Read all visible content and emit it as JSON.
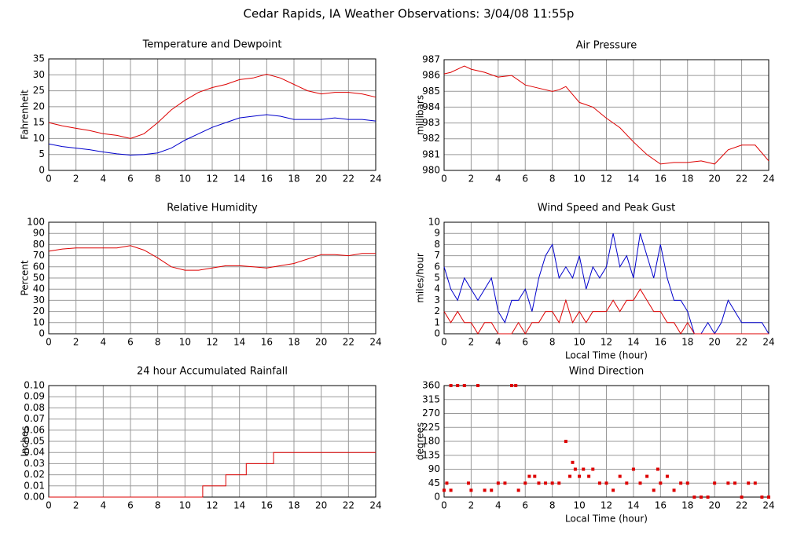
{
  "title": "Cedar Rapids, IA Weather Observations: 3/04/08 11:55p",
  "chart_data": [
    {
      "type": "line",
      "title": "Temperature and Dewpoint",
      "ylabel": "Fahrenheit",
      "x": [
        0,
        1,
        2,
        3,
        4,
        5,
        6,
        7,
        8,
        9,
        10,
        11,
        12,
        13,
        14,
        15,
        16,
        17,
        18,
        19,
        20,
        21,
        22,
        23,
        24
      ],
      "series": [
        {
          "color": "#dd0000",
          "values": [
            15,
            14,
            13.2,
            12.5,
            11.5,
            11,
            10,
            11.5,
            15,
            19,
            22,
            24.5,
            26,
            27,
            28.5,
            29,
            30.2,
            29,
            27,
            25,
            24,
            24.5,
            24.5,
            24,
            23
          ]
        },
        {
          "color": "#0000cc",
          "values": [
            8.3,
            7.5,
            7,
            6.5,
            5.8,
            5.2,
            4.8,
            5,
            5.5,
            7,
            9.5,
            11.5,
            13.5,
            15,
            16.5,
            17,
            17.5,
            17,
            16,
            16,
            16,
            16.5,
            16,
            16,
            15.5
          ]
        }
      ],
      "xlim": [
        0,
        24
      ],
      "xticks": [
        0,
        2,
        4,
        6,
        8,
        10,
        12,
        14,
        16,
        18,
        20,
        22,
        24
      ],
      "ylim": [
        0,
        35
      ],
      "yticks": [
        0,
        5,
        10,
        15,
        20,
        25,
        30,
        35
      ],
      "grid": true
    },
    {
      "type": "line",
      "title": "Air Pressure",
      "ylabel": "millibars",
      "x": [
        0,
        0.5,
        1,
        1.5,
        2,
        3,
        4,
        5,
        6,
        7,
        8,
        8.5,
        9,
        10,
        11,
        12,
        13,
        14,
        15,
        16,
        17,
        18,
        19,
        20,
        21,
        22,
        23,
        24
      ],
      "series": [
        {
          "color": "#dd0000",
          "values": [
            986.1,
            986.2,
            986.4,
            986.6,
            986.4,
            986.2,
            985.9,
            986,
            985.4,
            985.2,
            985,
            985.1,
            985.3,
            984.3,
            984,
            983.3,
            982.7,
            981.8,
            981,
            980.4,
            980.5,
            980.5,
            980.6,
            980.4,
            981.3,
            981.6,
            981.6,
            980.6
          ]
        }
      ],
      "xlim": [
        0,
        24
      ],
      "xticks": [
        0,
        2,
        4,
        6,
        8,
        10,
        12,
        14,
        16,
        18,
        20,
        22,
        24
      ],
      "ylim": [
        980,
        987
      ],
      "yticks": [
        980,
        981,
        982,
        983,
        984,
        985,
        986,
        987
      ],
      "grid": true
    },
    {
      "type": "line",
      "title": "Relative Humidity",
      "ylabel": "Percent",
      "x": [
        0,
        1,
        2,
        3,
        4,
        5,
        6,
        7,
        8,
        9,
        10,
        11,
        12,
        13,
        14,
        15,
        16,
        17,
        18,
        19,
        20,
        21,
        22,
        23,
        24
      ],
      "series": [
        {
          "color": "#dd0000",
          "values": [
            74,
            76,
            77,
            77,
            77,
            77,
            79,
            75,
            68,
            60,
            57,
            57,
            59,
            61,
            61,
            60,
            59,
            61,
            63,
            67,
            71,
            71,
            70,
            72,
            72
          ]
        }
      ],
      "xlim": [
        0,
        24
      ],
      "xticks": [
        0,
        2,
        4,
        6,
        8,
        10,
        12,
        14,
        16,
        18,
        20,
        22,
        24
      ],
      "ylim": [
        0,
        100
      ],
      "yticks": [
        0,
        10,
        20,
        30,
        40,
        50,
        60,
        70,
        80,
        90,
        100
      ],
      "grid": true
    },
    {
      "type": "line",
      "title": "Wind Speed and Peak Gust",
      "ylabel": "miles/hour",
      "xlabel": "Local Time (hour)",
      "x": [
        0,
        0.5,
        1,
        1.5,
        2,
        2.5,
        3,
        3.5,
        4,
        4.5,
        5,
        5.5,
        6,
        6.5,
        7,
        7.5,
        8,
        8.5,
        9,
        9.5,
        10,
        10.5,
        11,
        11.5,
        12,
        12.5,
        13,
        13.5,
        14,
        14.5,
        15,
        15.5,
        16,
        16.5,
        17,
        17.5,
        18,
        18.5,
        19,
        19.5,
        20,
        20.5,
        21,
        21.5,
        22,
        22.5,
        23,
        23.5,
        24
      ],
      "series": [
        {
          "color": "#0000cc",
          "values": [
            6,
            4,
            3,
            5,
            4,
            3,
            4,
            5,
            2,
            1,
            3,
            3,
            4,
            2,
            5,
            7,
            8,
            5,
            6,
            5,
            7,
            4,
            6,
            5,
            6,
            9,
            6,
            7,
            5,
            9,
            7,
            5,
            8,
            5,
            3,
            3,
            2,
            0,
            0,
            1,
            0,
            1,
            3,
            2,
            1,
            1,
            1,
            1,
            0
          ]
        },
        {
          "color": "#dd0000",
          "values": [
            2,
            1,
            2,
            1,
            1,
            0,
            1,
            1,
            0,
            0,
            0,
            1,
            0,
            1,
            1,
            2,
            2,
            1,
            3,
            1,
            2,
            1,
            2,
            2,
            2,
            3,
            2,
            3,
            3,
            4,
            3,
            2,
            2,
            1,
            1,
            0,
            1,
            0,
            0,
            0,
            0,
            0,
            0,
            0,
            0,
            0,
            0,
            0,
            0
          ]
        }
      ],
      "xlim": [
        0,
        24
      ],
      "xticks": [
        0,
        2,
        4,
        6,
        8,
        10,
        12,
        14,
        16,
        18,
        20,
        22,
        24
      ],
      "ylim": [
        0,
        10
      ],
      "yticks": [
        0,
        1,
        2,
        3,
        4,
        5,
        6,
        7,
        8,
        9,
        10
      ],
      "grid": true
    },
    {
      "type": "line",
      "title": "24 hour Accumulated Rainfall",
      "ylabel": "Inches",
      "x": [
        0,
        11.3,
        11.3,
        13,
        13,
        14.5,
        14.5,
        16.5,
        16.5,
        24
      ],
      "series": [
        {
          "color": "#dd0000",
          "values": [
            0,
            0,
            0.01,
            0.01,
            0.02,
            0.02,
            0.03,
            0.03,
            0.04,
            0.04
          ]
        }
      ],
      "xlim": [
        0,
        24
      ],
      "xticks": [
        0,
        2,
        4,
        6,
        8,
        10,
        12,
        14,
        16,
        18,
        20,
        22,
        24
      ],
      "ylim": [
        0,
        0.1
      ],
      "yticks": [
        {
          "value": 0,
          "label": "0.00"
        },
        {
          "value": 0.01,
          "label": "0.01"
        },
        {
          "value": 0.02,
          "label": "0.02"
        },
        {
          "value": 0.03,
          "label": "0.03"
        },
        {
          "value": 0.04,
          "label": "0.04"
        },
        {
          "value": 0.05,
          "label": "0.05"
        },
        {
          "value": 0.06,
          "label": "0.06"
        },
        {
          "value": 0.07,
          "label": "0.07"
        },
        {
          "value": 0.08,
          "label": "0.08"
        },
        {
          "value": 0.09,
          "label": "0.09"
        },
        {
          "value": 0.1,
          "label": "0.10"
        }
      ],
      "grid": true
    },
    {
      "type": "scatter",
      "title": "Wind Direction",
      "ylabel": "degrees",
      "xlabel": "Local Time (hour)",
      "x": [
        0,
        0.2,
        0.5,
        0.5,
        1,
        1.5,
        1.8,
        2,
        2.5,
        3,
        3.5,
        4,
        4.5,
        5,
        5.3,
        5.5,
        6,
        6.3,
        6.7,
        7,
        7.5,
        8,
        8.5,
        9,
        9.3,
        9.5,
        9.7,
        10,
        10.3,
        10.7,
        11,
        11.5,
        12,
        12.5,
        13,
        13.5,
        14,
        14.5,
        15,
        15.5,
        15.8,
        16,
        16.5,
        17,
        17.5,
        18,
        18.5,
        19,
        19.5,
        20,
        21,
        21.5,
        22,
        22.5,
        23,
        23.5,
        24
      ],
      "series": [
        {
          "color": "#dd0000",
          "values": [
            22,
            45,
            22,
            360,
            360,
            360,
            45,
            22,
            360,
            22,
            22,
            45,
            45,
            360,
            360,
            22,
            45,
            67,
            67,
            45,
            45,
            45,
            45,
            180,
            67,
            112,
            90,
            67,
            90,
            67,
            90,
            45,
            45,
            22,
            67,
            45,
            90,
            45,
            67,
            22,
            90,
            45,
            67,
            22,
            45,
            45,
            0,
            0,
            0,
            45,
            45,
            45,
            0,
            45,
            45,
            0,
            0
          ]
        }
      ],
      "xlim": [
        0,
        24
      ],
      "xticks": [
        0,
        2,
        4,
        6,
        8,
        10,
        12,
        14,
        16,
        18,
        20,
        22,
        24
      ],
      "ylim": [
        0,
        360
      ],
      "yticks": [
        0,
        45,
        90,
        135,
        180,
        225,
        270,
        315,
        360
      ],
      "grid": true
    }
  ]
}
